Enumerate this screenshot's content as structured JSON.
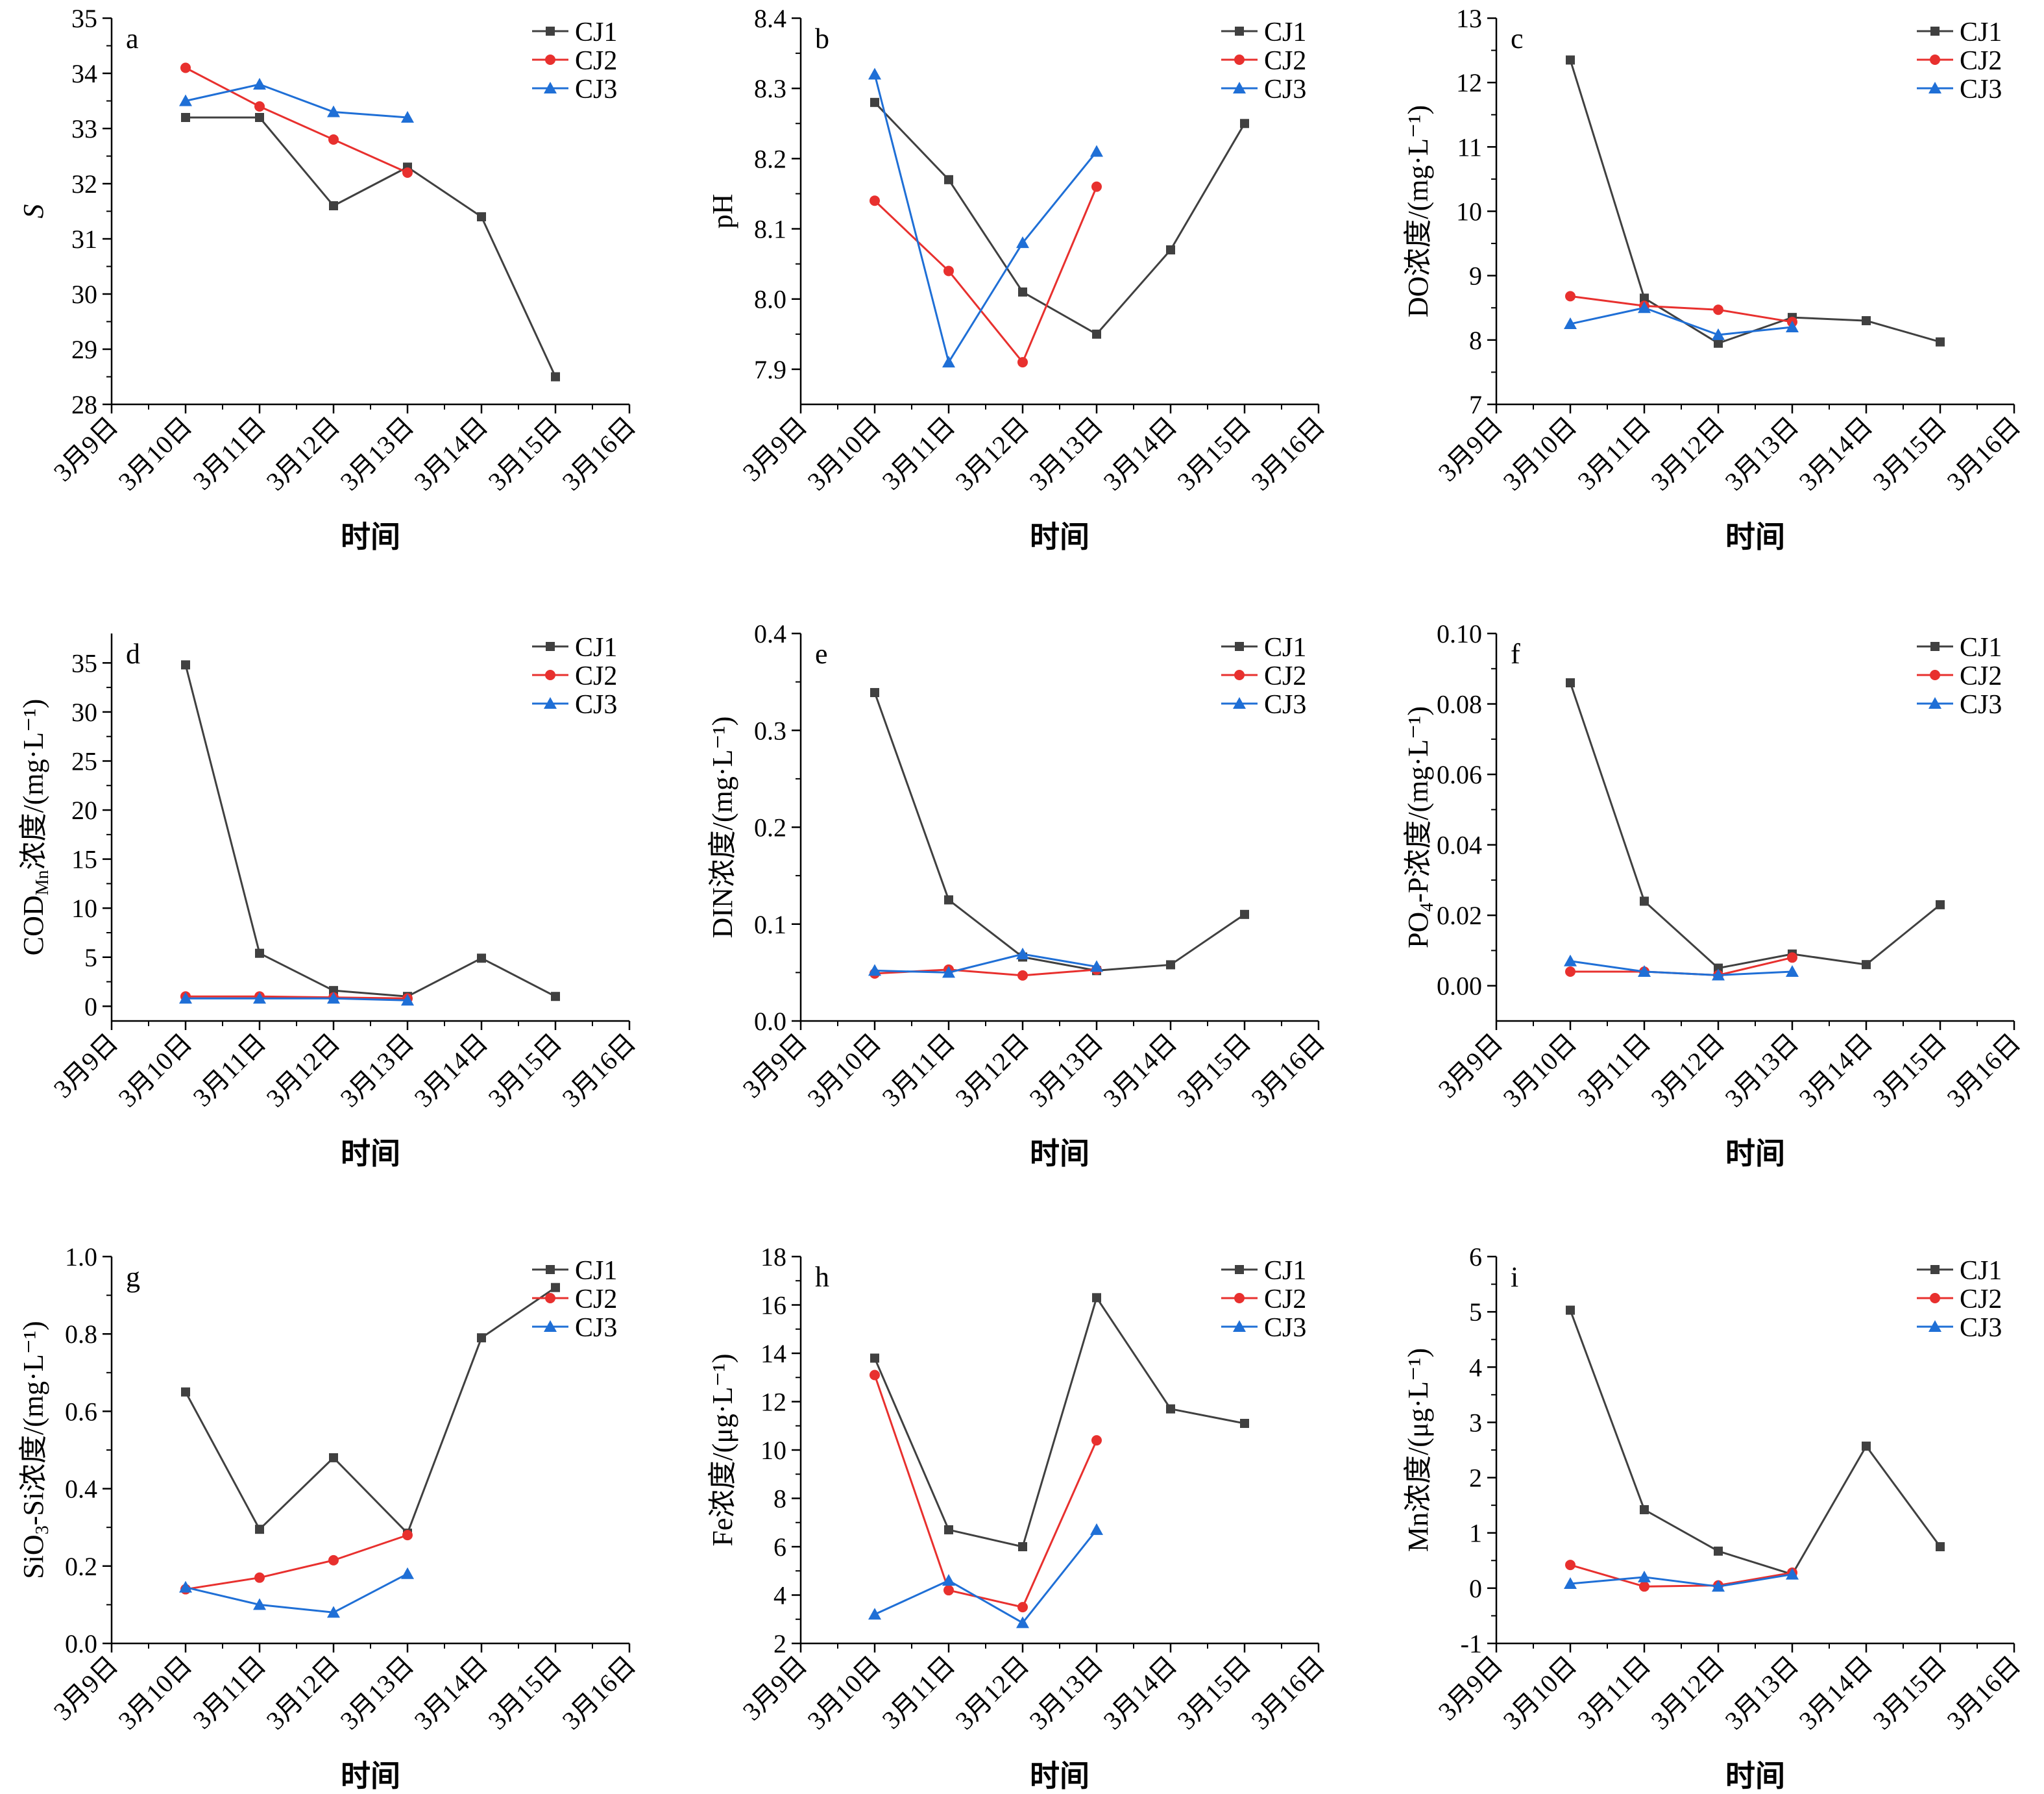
{
  "x_categories": [
    "3月9日",
    "3月10日",
    "3月11日",
    "3月12日",
    "3月13日",
    "3月14日",
    "3月15日",
    "3月16日"
  ],
  "xlabel": "时间",
  "series_names": [
    "CJ1",
    "CJ2",
    "CJ3"
  ],
  "colors": {
    "CJ1": "#404040",
    "CJ2": "#e8302e",
    "CJ3": "#1f6fd6"
  },
  "chart_data": [
    {
      "id": "a",
      "type": "line",
      "panel_label": "a",
      "ylabel": "S",
      "ylim": [
        28,
        35
      ],
      "yticks": [
        28,
        29,
        30,
        31,
        32,
        33,
        34,
        35
      ],
      "series": [
        {
          "name": "CJ1",
          "marker": "square",
          "values": [
            null,
            33.2,
            33.2,
            31.6,
            32.3,
            31.4,
            28.5,
            null
          ]
        },
        {
          "name": "CJ2",
          "marker": "circle",
          "values": [
            null,
            34.1,
            33.4,
            32.8,
            32.2,
            null,
            null,
            null
          ]
        },
        {
          "name": "CJ3",
          "marker": "triangle",
          "values": [
            null,
            33.5,
            33.8,
            33.3,
            33.2,
            null,
            null,
            null
          ]
        }
      ]
    },
    {
      "id": "b",
      "type": "line",
      "panel_label": "b",
      "ylabel": "pH",
      "ylim": [
        7.85,
        8.4
      ],
      "yticks": [
        7.9,
        8.0,
        8.1,
        8.2,
        8.3,
        8.4
      ],
      "tick_decimals": 1,
      "series": [
        {
          "name": "CJ1",
          "marker": "square",
          "values": [
            null,
            8.28,
            8.17,
            8.01,
            7.95,
            8.07,
            8.25,
            null
          ]
        },
        {
          "name": "CJ2",
          "marker": "circle",
          "values": [
            null,
            8.14,
            8.04,
            7.91,
            8.16,
            null,
            null,
            null
          ]
        },
        {
          "name": "CJ3",
          "marker": "triangle",
          "values": [
            null,
            8.32,
            7.91,
            8.08,
            8.21,
            null,
            null,
            null
          ]
        }
      ]
    },
    {
      "id": "c",
      "type": "line",
      "panel_label": "c",
      "ylabel": "DO浓度/(mg·L⁻¹)",
      "ylim": [
        7,
        13
      ],
      "yticks": [
        7,
        8,
        9,
        10,
        11,
        12,
        13
      ],
      "series": [
        {
          "name": "CJ1",
          "marker": "square",
          "values": [
            null,
            12.35,
            8.65,
            7.95,
            8.35,
            8.3,
            7.97,
            null
          ]
        },
        {
          "name": "CJ2",
          "marker": "circle",
          "values": [
            null,
            8.68,
            8.53,
            8.47,
            8.28,
            null,
            null,
            null
          ]
        },
        {
          "name": "CJ3",
          "marker": "triangle",
          "values": [
            null,
            8.25,
            8.5,
            8.08,
            8.2,
            null,
            null,
            null
          ]
        }
      ]
    },
    {
      "id": "d",
      "type": "line",
      "panel_label": "d",
      "ylabel": "COD",
      "ylabel_sub": "Mn",
      "ylabel_rest": "浓度/(mg·L⁻¹)",
      "ylim": [
        -1.5,
        38
      ],
      "yticks": [
        0,
        5,
        10,
        15,
        20,
        25,
        30,
        35
      ],
      "series": [
        {
          "name": "CJ1",
          "marker": "square",
          "values": [
            null,
            34.8,
            5.4,
            1.6,
            1.0,
            4.9,
            1.0,
            null
          ]
        },
        {
          "name": "CJ2",
          "marker": "circle",
          "values": [
            null,
            1.0,
            1.0,
            0.9,
            0.8,
            null,
            null,
            null
          ]
        },
        {
          "name": "CJ3",
          "marker": "triangle",
          "values": [
            null,
            0.8,
            0.8,
            0.8,
            0.6,
            null,
            null,
            null
          ]
        }
      ]
    },
    {
      "id": "e",
      "type": "line",
      "panel_label": "e",
      "ylabel": "DIN浓度/(mg·L⁻¹)",
      "ylim": [
        0,
        0.4
      ],
      "yticks": [
        0,
        0.1,
        0.2,
        0.3,
        0.4
      ],
      "tick_decimals": 1,
      "series": [
        {
          "name": "CJ1",
          "marker": "square",
          "values": [
            null,
            0.339,
            0.125,
            0.066,
            0.052,
            0.058,
            0.11,
            null
          ]
        },
        {
          "name": "CJ2",
          "marker": "circle",
          "values": [
            null,
            0.049,
            0.053,
            0.047,
            0.053,
            null,
            null,
            null
          ]
        },
        {
          "name": "CJ3",
          "marker": "triangle",
          "values": [
            null,
            0.052,
            0.05,
            0.069,
            0.056,
            null,
            null,
            null
          ]
        }
      ]
    },
    {
      "id": "f",
      "type": "line",
      "panel_label": "f",
      "ylabel": "PO",
      "ylabel_sub": "4",
      "ylabel_rest": "-P浓度/(mg·L⁻¹)",
      "ylim": [
        -0.01,
        0.1
      ],
      "yticks": [
        0,
        0.02,
        0.04,
        0.06,
        0.08,
        0.1
      ],
      "tick_decimals": 2,
      "series": [
        {
          "name": "CJ1",
          "marker": "square",
          "values": [
            null,
            0.086,
            0.024,
            0.005,
            0.009,
            0.006,
            0.023,
            null
          ]
        },
        {
          "name": "CJ2",
          "marker": "circle",
          "values": [
            null,
            0.004,
            0.004,
            0.003,
            0.008,
            null,
            null,
            null
          ]
        },
        {
          "name": "CJ3",
          "marker": "triangle",
          "values": [
            null,
            0.007,
            0.004,
            0.003,
            0.004,
            null,
            null,
            null
          ]
        }
      ]
    },
    {
      "id": "g",
      "type": "line",
      "panel_label": "g",
      "ylabel": "SiO",
      "ylabel_sub": "3",
      "ylabel_rest": "-Si浓度/(mg·L⁻¹)",
      "ylim": [
        0,
        1.0
      ],
      "yticks": [
        0,
        0.2,
        0.4,
        0.6,
        0.8,
        1.0
      ],
      "tick_decimals": 1,
      "series": [
        {
          "name": "CJ1",
          "marker": "square",
          "values": [
            null,
            0.65,
            0.295,
            0.48,
            0.285,
            0.79,
            0.92,
            null
          ]
        },
        {
          "name": "CJ2",
          "marker": "circle",
          "values": [
            null,
            0.14,
            0.17,
            0.215,
            0.28,
            null,
            null,
            null
          ]
        },
        {
          "name": "CJ3",
          "marker": "triangle",
          "values": [
            null,
            0.145,
            0.1,
            0.08,
            0.18,
            null,
            null,
            null
          ]
        }
      ]
    },
    {
      "id": "h",
      "type": "line",
      "panel_label": "h",
      "ylabel": "Fe浓度/(μg·L⁻¹)",
      "ylim": [
        2,
        18
      ],
      "yticks": [
        2,
        4,
        6,
        8,
        10,
        12,
        14,
        16,
        18
      ],
      "series": [
        {
          "name": "CJ1",
          "marker": "square",
          "values": [
            null,
            13.8,
            6.7,
            6.0,
            16.3,
            11.7,
            11.1,
            null
          ]
        },
        {
          "name": "CJ2",
          "marker": "circle",
          "values": [
            null,
            13.1,
            4.2,
            3.5,
            10.4,
            null,
            null,
            null
          ]
        },
        {
          "name": "CJ3",
          "marker": "triangle",
          "values": [
            null,
            3.2,
            4.6,
            2.85,
            6.7,
            null,
            null,
            null
          ]
        }
      ]
    },
    {
      "id": "i",
      "type": "line",
      "panel_label": "i",
      "ylabel": "Mn浓度/(μg·L⁻¹)",
      "ylim": [
        -1,
        6
      ],
      "yticks": [
        -1,
        0,
        1,
        2,
        3,
        4,
        5,
        6
      ],
      "series": [
        {
          "name": "CJ1",
          "marker": "square",
          "values": [
            null,
            5.03,
            1.42,
            0.67,
            0.25,
            2.57,
            0.75,
            null
          ]
        },
        {
          "name": "CJ2",
          "marker": "circle",
          "values": [
            null,
            0.42,
            0.03,
            0.05,
            0.28,
            null,
            null,
            null
          ]
        },
        {
          "name": "CJ3",
          "marker": "triangle",
          "values": [
            null,
            0.08,
            0.2,
            0.03,
            0.25,
            null,
            null,
            null
          ]
        }
      ]
    }
  ]
}
